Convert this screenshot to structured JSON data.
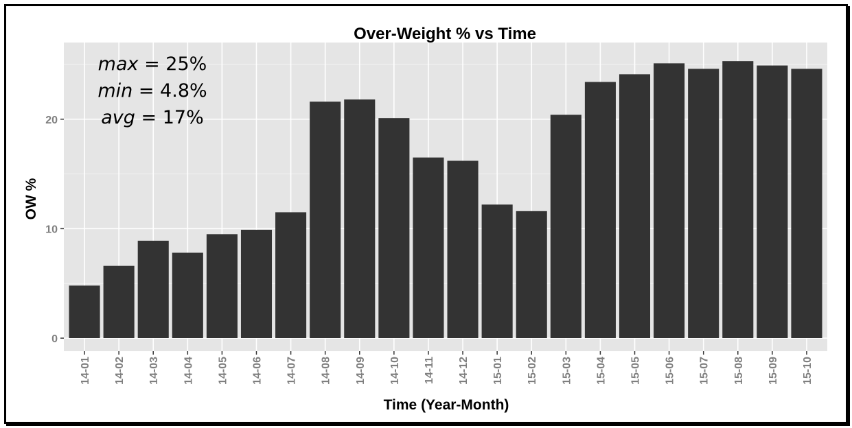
{
  "chart_data": {
    "type": "bar",
    "title": "Over-Weight % vs Time",
    "xlabel": "Time (Year-Month)",
    "ylabel": "OW %",
    "categories": [
      "14-01",
      "14-02",
      "14-03",
      "14-04",
      "14-05",
      "14-06",
      "14-07",
      "14-08",
      "14-09",
      "14-10",
      "14-11",
      "14-12",
      "15-01",
      "15-02",
      "15-03",
      "15-04",
      "15-05",
      "15-06",
      "15-07",
      "15-08",
      "15-09",
      "15-10"
    ],
    "values": [
      4.8,
      6.6,
      8.9,
      7.8,
      9.5,
      9.9,
      11.5,
      21.6,
      21.8,
      20.1,
      16.5,
      16.2,
      12.2,
      11.6,
      20.4,
      23.4,
      24.1,
      25.1,
      24.6,
      25.3,
      24.9,
      24.6
    ],
    "ylim": [
      0,
      26.5
    ],
    "yticks": [
      0,
      10,
      20
    ],
    "grid": true,
    "bar_color": "#333333",
    "panel_color": "#e5e5e5",
    "annotations": [
      {
        "name": "max",
        "value": "25%"
      },
      {
        "name": "min",
        "value": "4.8%"
      },
      {
        "name": "avg",
        "value": "17%"
      }
    ]
  }
}
